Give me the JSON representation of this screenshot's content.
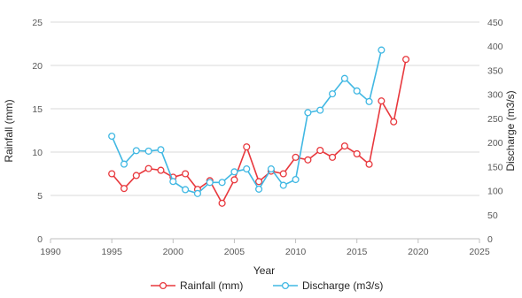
{
  "chart_data": {
    "type": "line",
    "xlabel": "Year",
    "ylabel_left": "Rainfall (mm)",
    "ylabel_right": "Discharge (m3/s)",
    "xlim": [
      1990,
      2025
    ],
    "ylim_left": [
      0,
      25
    ],
    "ylim_right": [
      0,
      450
    ],
    "x_ticks": [
      1990,
      1995,
      2000,
      2005,
      2010,
      2015,
      2020,
      2025
    ],
    "y_ticks_left": [
      0,
      5,
      10,
      15,
      20,
      25
    ],
    "y_ticks_right": [
      0,
      50,
      100,
      150,
      200,
      250,
      300,
      350,
      400,
      450
    ],
    "grid": "horizontal",
    "legend_position": "bottom",
    "series": [
      {
        "name": "Rainfall (mm)",
        "axis": "left",
        "color": "#e8383d",
        "x": [
          1995,
          1996,
          1997,
          1998,
          1999,
          2000,
          2001,
          2002,
          2003,
          2004,
          2005,
          2006,
          2007,
          2008,
          2009,
          2010,
          2011,
          2012,
          2013,
          2014,
          2015,
          2016,
          2017,
          2018,
          2019
        ],
        "y": [
          7.5,
          5.8,
          7.3,
          8.1,
          7.9,
          7.1,
          7.5,
          5.7,
          6.7,
          4.1,
          6.8,
          10.6,
          6.6,
          7.8,
          7.5,
          9.4,
          9.1,
          10.2,
          9.4,
          10.7,
          9.8,
          8.6,
          15.9,
          13.5,
          20.7
        ]
      },
      {
        "name": "Discharge (m3/s)",
        "axis": "right",
        "color": "#41b8e3",
        "x": [
          1995,
          1996,
          1997,
          1998,
          1999,
          2000,
          2001,
          2002,
          2003,
          2004,
          2005,
          2006,
          2007,
          2008,
          2009,
          2010,
          2011,
          2012,
          2013,
          2014,
          2015,
          2016,
          2017
        ],
        "y": [
          213,
          155,
          183,
          182,
          185,
          119,
          102,
          94,
          117,
          117,
          139,
          145,
          103,
          145,
          111,
          123,
          262,
          267,
          301,
          333,
          307,
          285,
          392
        ]
      }
    ]
  }
}
